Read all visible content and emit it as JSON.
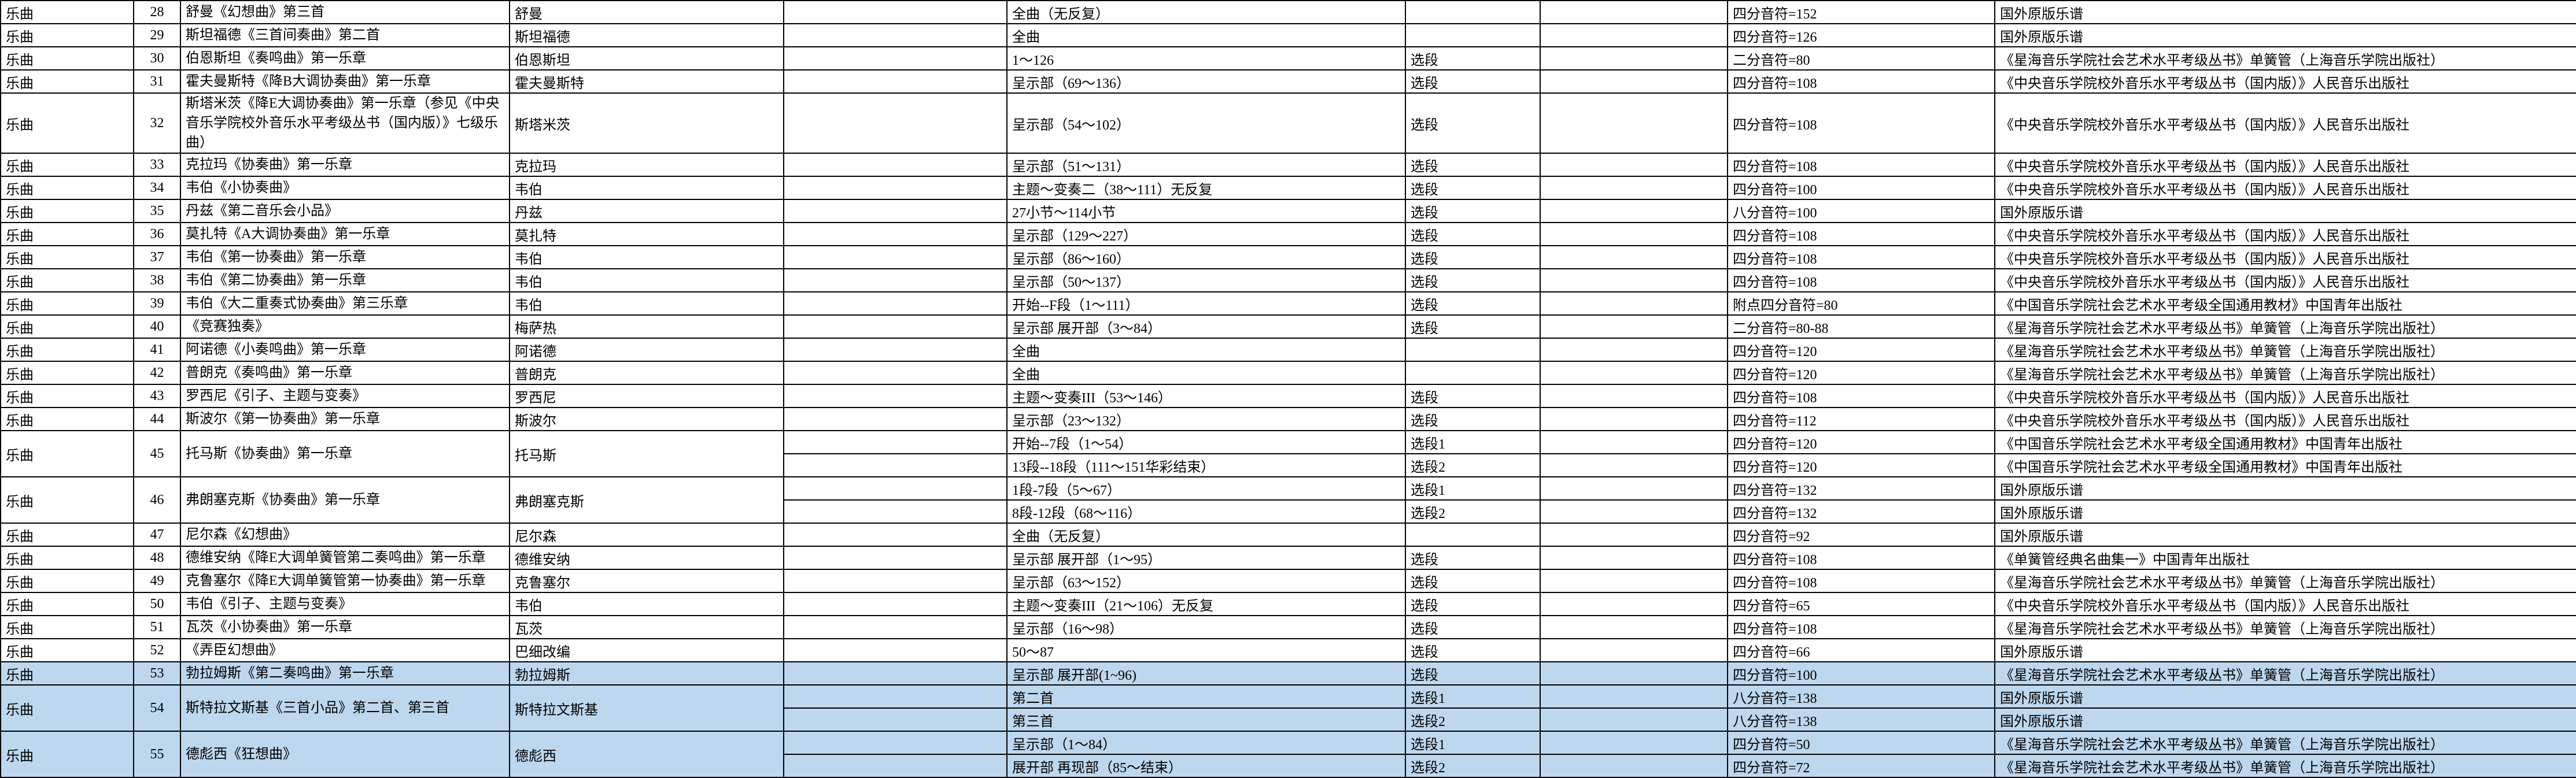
{
  "table": {
    "highlight_color": "#BDD7EE",
    "grid_color": "#000000",
    "column_names": [
      "category",
      "number",
      "title",
      "composer",
      "blank",
      "range",
      "selection",
      "blank",
      "tempo",
      "source"
    ],
    "rows": [
      {
        "category": "乐曲",
        "no": "28",
        "title": "舒曼《幻想曲》第三首",
        "composer": "舒曼",
        "highlight": false,
        "parts": [
          {
            "range": "全曲（无反复）",
            "selection": "",
            "tempo": "四分音符=152",
            "source": "国外原版乐谱"
          }
        ]
      },
      {
        "category": "乐曲",
        "no": "29",
        "title": "斯坦福德《三首间奏曲》第二首",
        "composer": "斯坦福德",
        "highlight": false,
        "parts": [
          {
            "range": "全曲",
            "selection": "",
            "tempo": "四分音符=126",
            "source": "国外原版乐谱"
          }
        ]
      },
      {
        "category": "乐曲",
        "no": "30",
        "title": "伯恩斯坦《奏鸣曲》第一乐章",
        "composer": "伯恩斯坦",
        "highlight": false,
        "parts": [
          {
            "range": "1～126",
            "selection": "选段",
            "tempo": "二分音符=80",
            "source": "《星海音乐学院社会艺术水平考级丛书》单簧管（上海音乐学院出版社）"
          }
        ]
      },
      {
        "category": "乐曲",
        "no": "31",
        "title": "霍夫曼斯特《降B大调协奏曲》第一乐章",
        "composer": "霍夫曼斯特",
        "highlight": false,
        "parts": [
          {
            "range": "呈示部（69～136）",
            "selection": "选段",
            "tempo": "四分音符=108",
            "source": "《中央音乐学院校外音乐水平考级丛书（国内版）》人民音乐出版社"
          }
        ]
      },
      {
        "category": "乐曲",
        "no": "32",
        "title": "斯塔米茨《降E大调协奏曲》第一乐章（参见《中央音乐学院校外音乐水平考级丛书（国内版）》七级乐曲）",
        "composer": "斯塔米茨",
        "highlight": false,
        "parts": [
          {
            "range": "呈示部（54～102）",
            "selection": "选段",
            "tempo": "四分音符=108",
            "source": "《中央音乐学院校外音乐水平考级丛书（国内版）》人民音乐出版社"
          }
        ]
      },
      {
        "category": "乐曲",
        "no": "33",
        "title": "克拉玛《协奏曲》第一乐章",
        "composer": "克拉玛",
        "highlight": false,
        "parts": [
          {
            "range": "呈示部（51～131）",
            "selection": "选段",
            "tempo": "四分音符=108",
            "source": "《中央音乐学院校外音乐水平考级丛书（国内版）》人民音乐出版社"
          }
        ]
      },
      {
        "category": "乐曲",
        "no": "34",
        "title": "韦伯《小协奏曲》",
        "composer": "韦伯",
        "highlight": false,
        "parts": [
          {
            "range": "主题～变奏二（38～111）无反复",
            "selection": "选段",
            "tempo": "四分音符=100",
            "source": "《中央音乐学院校外音乐水平考级丛书（国内版）》人民音乐出版社"
          }
        ]
      },
      {
        "category": "乐曲",
        "no": "35",
        "title": "丹兹《第二音乐会小品》",
        "composer": "丹兹",
        "highlight": false,
        "parts": [
          {
            "range": "27小节～114小节",
            "selection": "选段",
            "tempo": "八分音符=100",
            "source": "国外原版乐谱"
          }
        ]
      },
      {
        "category": "乐曲",
        "no": "36",
        "title": "莫扎特《A大调协奏曲》第一乐章",
        "composer": "莫扎特",
        "highlight": false,
        "parts": [
          {
            "range": "呈示部（129～227）",
            "selection": "选段",
            "tempo": "四分音符=108",
            "source": "《中央音乐学院校外音乐水平考级丛书（国内版）》人民音乐出版社"
          }
        ]
      },
      {
        "category": "乐曲",
        "no": "37",
        "title": "韦伯《第一协奏曲》第一乐章",
        "composer": "韦伯",
        "highlight": false,
        "parts": [
          {
            "range": "呈示部（86～160）",
            "selection": "选段",
            "tempo": "四分音符=108",
            "source": "《中央音乐学院校外音乐水平考级丛书（国内版）》人民音乐出版社"
          }
        ]
      },
      {
        "category": "乐曲",
        "no": "38",
        "title": "韦伯《第二协奏曲》第一乐章",
        "composer": "韦伯",
        "highlight": false,
        "parts": [
          {
            "range": "呈示部（50～137）",
            "selection": "选段",
            "tempo": "四分音符=108",
            "source": "《中央音乐学院校外音乐水平考级丛书（国内版）》人民音乐出版社"
          }
        ]
      },
      {
        "category": "乐曲",
        "no": "39",
        "title": "韦伯《大二重奏式协奏曲》第三乐章",
        "composer": "韦伯",
        "highlight": false,
        "parts": [
          {
            "range": "开始--F段（1～111）",
            "selection": "选段",
            "tempo": "附点四分音符=80",
            "source": "《中国音乐学院社会艺术水平考级全国通用教材》中国青年出版社"
          }
        ]
      },
      {
        "category": "乐曲",
        "no": "40",
        "title": "《竞赛独奏》",
        "composer": "梅萨热",
        "highlight": false,
        "parts": [
          {
            "range": "呈示部 展开部（3～84）",
            "selection": "选段",
            "tempo": "二分音符=80-88",
            "source": "《星海音乐学院社会艺术水平考级丛书》单簧管（上海音乐学院出版社）"
          }
        ]
      },
      {
        "category": "乐曲",
        "no": "41",
        "title": "阿诺德《小奏鸣曲》第一乐章",
        "composer": "阿诺德",
        "highlight": false,
        "parts": [
          {
            "range": "全曲",
            "selection": "",
            "tempo": "四分音符=120",
            "source": "《星海音乐学院社会艺术水平考级丛书》单簧管（上海音乐学院出版社）"
          }
        ]
      },
      {
        "category": "乐曲",
        "no": "42",
        "title": "普朗克《奏鸣曲》第一乐章",
        "composer": "普朗克",
        "highlight": false,
        "parts": [
          {
            "range": "全曲",
            "selection": "",
            "tempo": "四分音符=120",
            "source": "《星海音乐学院社会艺术水平考级丛书》单簧管（上海音乐学院出版社）"
          }
        ]
      },
      {
        "category": "乐曲",
        "no": "43",
        "title": "罗西尼《引子、主题与变奏》",
        "composer": "罗西尼",
        "highlight": false,
        "parts": [
          {
            "range": "主题～变奏III（53～146）",
            "selection": "选段",
            "tempo": "四分音符=108",
            "source": "《中央音乐学院校外音乐水平考级丛书（国内版）》人民音乐出版社"
          }
        ]
      },
      {
        "category": "乐曲",
        "no": "44",
        "title": "斯波尔《第一协奏曲》第一乐章",
        "composer": "斯波尔",
        "highlight": false,
        "parts": [
          {
            "range": "呈示部（23～132）",
            "selection": "选段",
            "tempo": "四分音符=112",
            "source": "《中央音乐学院校外音乐水平考级丛书（国内版）》人民音乐出版社"
          }
        ]
      },
      {
        "category": "乐曲",
        "no": "45",
        "title": "托马斯《协奏曲》第一乐章",
        "composer": "托马斯",
        "highlight": false,
        "parts": [
          {
            "range": "开始--7段（1～54）",
            "selection": "选段1",
            "tempo": "四分音符=120",
            "source": "《中国音乐学院社会艺术水平考级全国通用教材》中国青年出版社"
          },
          {
            "range": "13段--18段（111～151华彩结束）",
            "selection": "选段2",
            "tempo": "四分音符=120",
            "source": "《中国音乐学院社会艺术水平考级全国通用教材》中国青年出版社"
          }
        ]
      },
      {
        "category": "乐曲",
        "no": "46",
        "title": "弗朗塞克斯《协奏曲》第一乐章",
        "composer": "弗朗塞克斯",
        "highlight": false,
        "parts": [
          {
            "range": "1段-7段（5～67）",
            "selection": "选段1",
            "tempo": "四分音符=132",
            "source": "国外原版乐谱"
          },
          {
            "range": "8段-12段（68～116）",
            "selection": "选段2",
            "tempo": "四分音符=132",
            "source": "国外原版乐谱"
          }
        ]
      },
      {
        "category": "乐曲",
        "no": "47",
        "title": "尼尔森《幻想曲》",
        "composer": "尼尔森",
        "highlight": false,
        "parts": [
          {
            "range": "全曲（无反复）",
            "selection": "",
            "tempo": "四分音符=92",
            "source": "国外原版乐谱"
          }
        ]
      },
      {
        "category": "乐曲",
        "no": "48",
        "title": "德维安纳《降E大调单簧管第二奏鸣曲》第一乐章",
        "composer": "德维安纳",
        "highlight": false,
        "parts": [
          {
            "range": "呈示部 展开部（1～95）",
            "selection": "选段",
            "tempo": "四分音符=108",
            "source": "《单簧管经典名曲集一》中国青年出版社"
          }
        ]
      },
      {
        "category": "乐曲",
        "no": "49",
        "title": "克鲁塞尔《降E大调单簧管第一协奏曲》第一乐章",
        "composer": "克鲁塞尔",
        "highlight": false,
        "parts": [
          {
            "range": "呈示部（63～152）",
            "selection": "选段",
            "tempo": "四分音符=108",
            "source": "《星海音乐学院社会艺术水平考级丛书》单簧管（上海音乐学院出版社）"
          }
        ]
      },
      {
        "category": "乐曲",
        "no": "50",
        "title": "韦伯《引子、主题与变奏》",
        "composer": "韦伯",
        "highlight": false,
        "parts": [
          {
            "range": "主题～变奏III（21～106）无反复",
            "selection": "选段",
            "tempo": "四分音符=65",
            "source": "《中央音乐学院校外音乐水平考级丛书（国内版）》人民音乐出版社"
          }
        ]
      },
      {
        "category": "乐曲",
        "no": "51",
        "title": "瓦茨《小协奏曲》第一乐章",
        "composer": "瓦茨",
        "highlight": false,
        "parts": [
          {
            "range": "呈示部（16～98）",
            "selection": "选段",
            "tempo": "四分音符=108",
            "source": "《星海音乐学院社会艺术水平考级丛书》单簧管（上海音乐学院出版社）"
          }
        ]
      },
      {
        "category": "乐曲",
        "no": "52",
        "title": "《弄臣幻想曲》",
        "composer": "巴细改编",
        "highlight": false,
        "parts": [
          {
            "range": "50～87",
            "selection": "选段",
            "tempo": "四分音符=66",
            "source": "国外原版乐谱"
          }
        ]
      },
      {
        "category": "乐曲",
        "no": "53",
        "title": "勃拉姆斯《第二奏鸣曲》第一乐章",
        "composer": "勃拉姆斯",
        "highlight": true,
        "parts": [
          {
            "range": "呈示部 展开部(1~96)",
            "selection": "选段",
            "tempo": "四分音符=100",
            "source": "《星海音乐学院社会艺术水平考级丛书》单簧管（上海音乐学院出版社）"
          }
        ]
      },
      {
        "category": "乐曲",
        "no": "54",
        "title": "斯特拉文斯基《三首小品》第二首、第三首",
        "composer": "斯特拉文斯基",
        "highlight": true,
        "parts": [
          {
            "range": "第二首",
            "selection": "选段1",
            "tempo": "八分音符=138",
            "source": "国外原版乐谱"
          },
          {
            "range": "第三首",
            "selection": "选段2",
            "tempo": "八分音符=138",
            "source": "国外原版乐谱"
          }
        ]
      },
      {
        "category": "乐曲",
        "no": "55",
        "title": "德彪西《狂想曲》",
        "composer": "德彪西",
        "highlight": true,
        "parts": [
          {
            "range": "呈示部（1～84）",
            "selection": "选段1",
            "tempo": "四分音符=50",
            "source": "《星海音乐学院社会艺术水平考级丛书》单簧管（上海音乐学院出版社）"
          },
          {
            "range": "展开部 再现部（85～结束）",
            "selection": "选段2",
            "tempo": "四分音符=72",
            "source": "《星海音乐学院社会艺术水平考级丛书》单簧管（上海音乐学院出版社）"
          }
        ]
      }
    ]
  }
}
